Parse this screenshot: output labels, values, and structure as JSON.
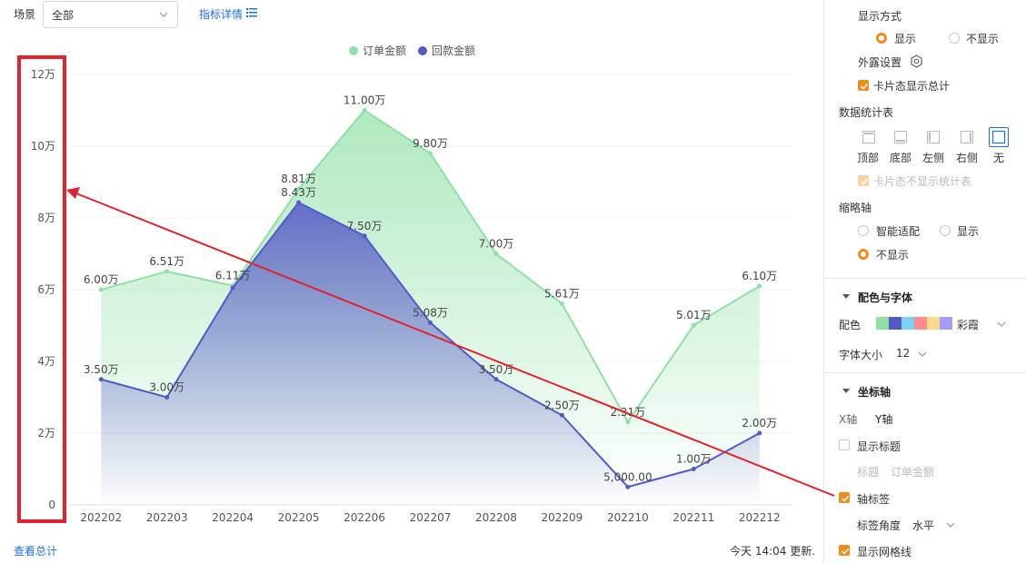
{
  "filter": {
    "label": "场景",
    "value": "全部",
    "metric_link": "指标详情"
  },
  "chart_data": {
    "type": "area",
    "categories": [
      "202202",
      "202203",
      "202204",
      "202205",
      "202206",
      "202207",
      "202208",
      "202209",
      "202210",
      "202211",
      "202212"
    ],
    "series": [
      {
        "name": "订单金额",
        "color": "#8ee0a4",
        "values": [
          60000,
          65100,
          61100,
          88100,
          110000,
          98000,
          70000,
          56100,
          23100,
          50100,
          61000
        ],
        "labels": [
          "6.00万",
          "6.51万",
          "6.11万",
          "8.81万",
          "11.00万",
          "9.80万",
          "7.00万",
          "5.61万",
          "2.31万",
          "5.01万",
          "6.10万"
        ]
      },
      {
        "name": "回款金额",
        "color": "#5359c6",
        "values": [
          35000,
          30000,
          60500,
          84300,
          75000,
          50800,
          35000,
          25000,
          5000,
          10000,
          20000
        ],
        "labels": [
          "3.50万",
          "3.00万",
          "",
          "8.43万",
          "7.50万",
          "5.08万",
          "3.50万",
          "2.50万",
          "5,000.00",
          "1.00万",
          "2.00万"
        ]
      }
    ],
    "yticks": [
      "0",
      "2万",
      "4万",
      "6万",
      "8万",
      "10万",
      "12万"
    ],
    "ylim": [
      0,
      120000
    ],
    "legend_position": "top-center",
    "grid": true
  },
  "annotation": {
    "highlight_color": "#e0242f"
  },
  "footer": {
    "view_total": "查看总计",
    "updated": "今天 14:04 更新."
  },
  "panel": {
    "display_mode": {
      "title": "显示方式",
      "options": [
        "显示",
        "不显示"
      ],
      "selected": "显示"
    },
    "exposure": {
      "label": "外露设置"
    },
    "card_total": {
      "label": "卡片态显示总计",
      "checked": true
    },
    "stats_table": {
      "title": "数据统计表",
      "positions": [
        "顶部",
        "底部",
        "左侧",
        "右侧",
        "无"
      ],
      "selected": "无",
      "card_hide": {
        "label": "卡片态不显示统计表",
        "checked": true
      }
    },
    "zoom_axis": {
      "title": "缩略轴",
      "options": [
        "智能适配",
        "显示",
        "不显示"
      ],
      "selected": "不显示"
    },
    "color_font": {
      "section": "配色与字体",
      "palette_label": "配色",
      "palette_colors": [
        "#8ee0a4",
        "#5359c6",
        "#7fd0f5",
        "#ff8c8c",
        "#ffd98c",
        "#a49cf0"
      ],
      "palette_name": "彩霞",
      "font_size_label": "字体大小",
      "font_size_value": "12"
    },
    "axis": {
      "section": "坐标轴",
      "tabs": [
        "X轴",
        "Y轴"
      ],
      "active_tab": "Y轴",
      "show_title": {
        "label": "显示标题",
        "checked": false
      },
      "title_field_label": "标题",
      "title_field_value": "订单金额",
      "axis_label": {
        "label": "轴标签",
        "checked": true
      },
      "label_angle_label": "标签角度",
      "label_angle_value": "水平",
      "grid_lines": {
        "label": "显示网格线",
        "checked": true
      }
    }
  }
}
